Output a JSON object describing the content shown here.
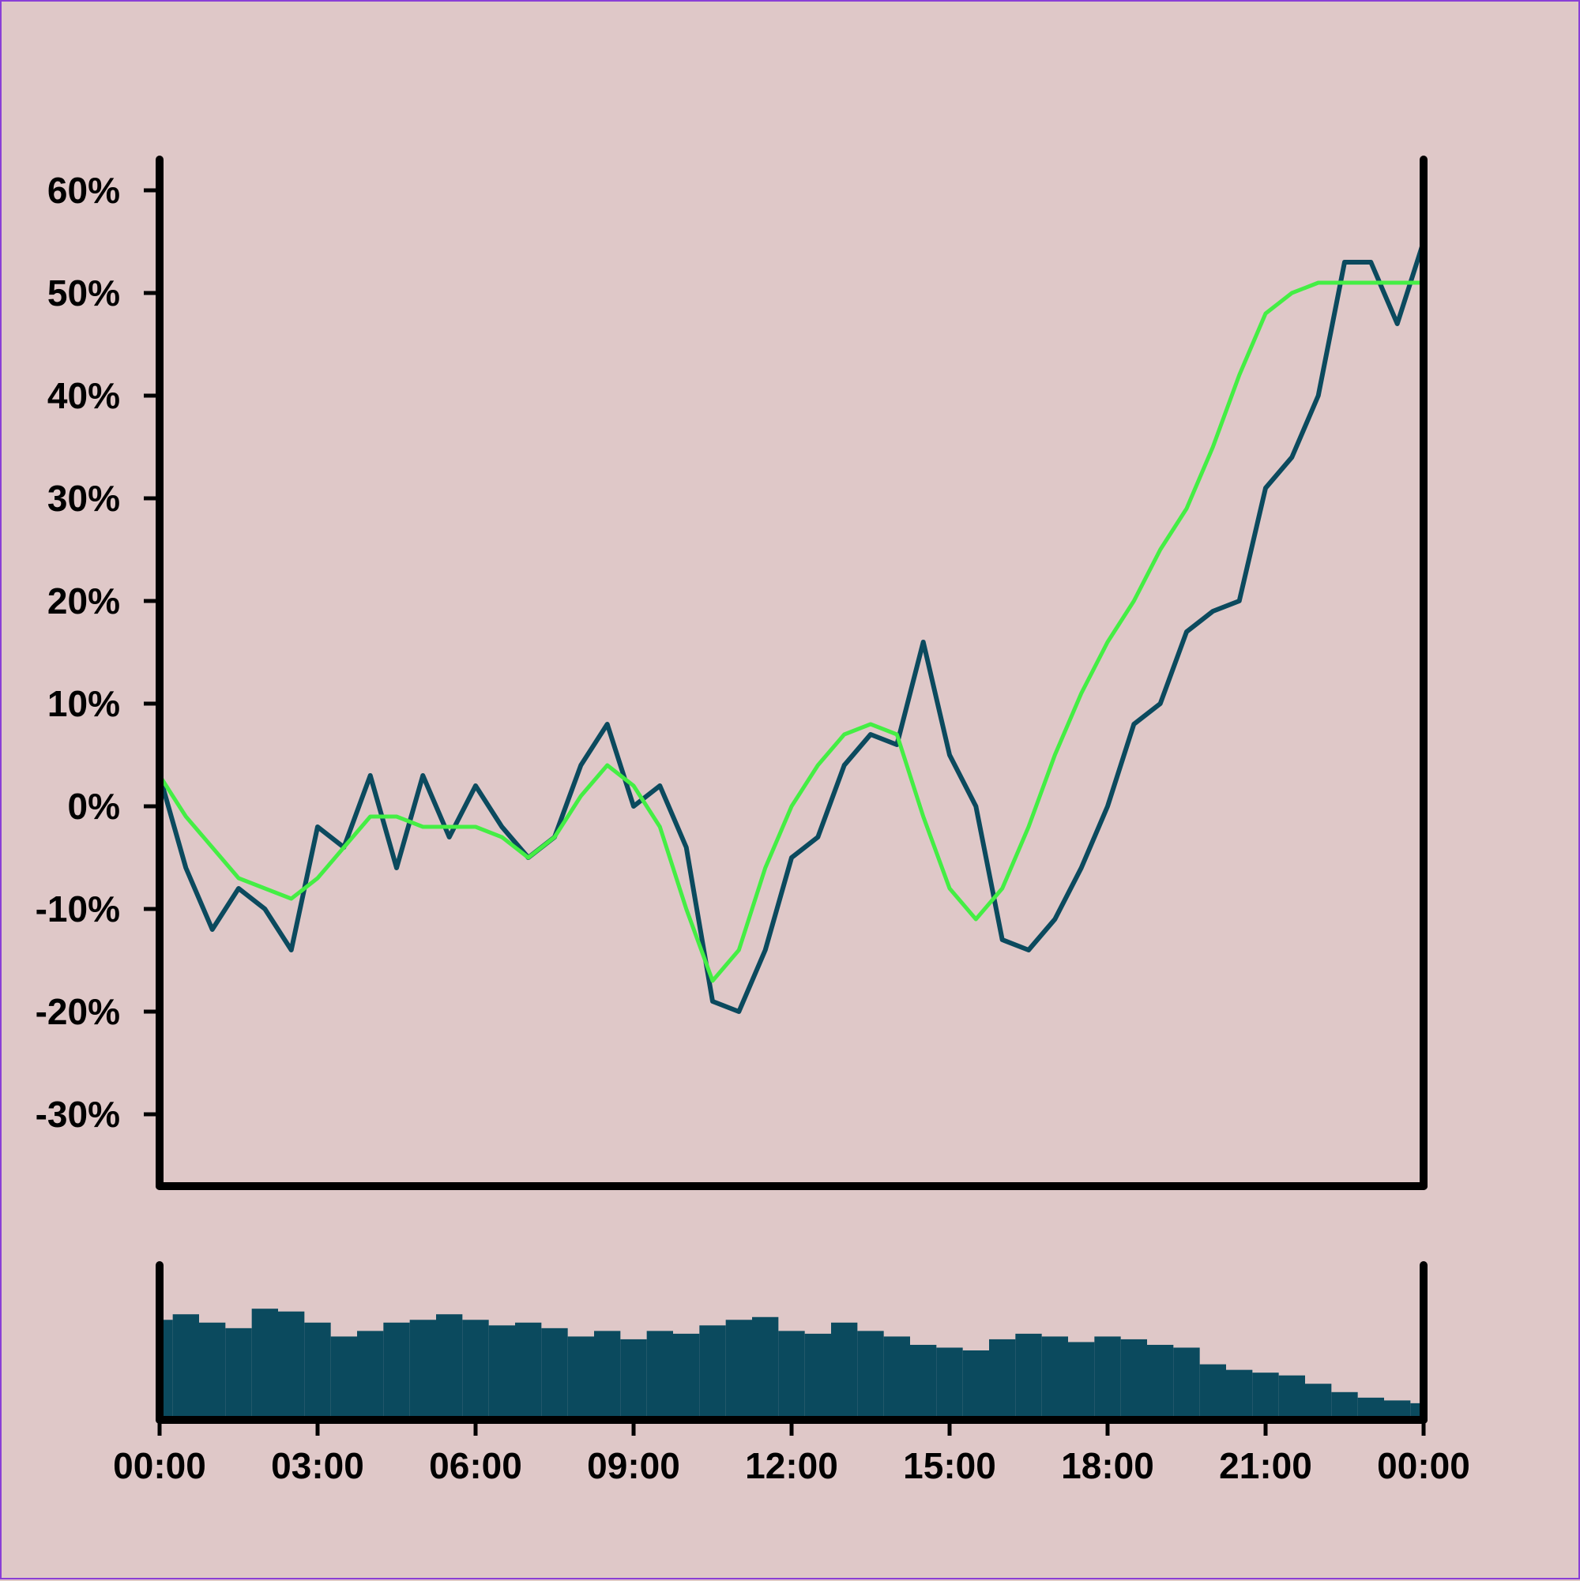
{
  "chart_data": [
    {
      "type": "line",
      "panel": "price",
      "title": "",
      "xlabel": "",
      "ylabel": "",
      "ylim": [
        -37,
        63
      ],
      "y_ticks": [
        60,
        50,
        40,
        30,
        20,
        10,
        0,
        -10,
        -20,
        -30
      ],
      "y_tick_labels": [
        "60%",
        "50%",
        "40%",
        "30%",
        "20%",
        "10%",
        "0%",
        "-10%",
        "-20%",
        "-30%"
      ],
      "xlim": [
        0,
        24
      ],
      "grid": false,
      "legend": "none",
      "series": [
        {
          "color": "#0b4a5e",
          "x": [
            0,
            0.5,
            1,
            1.5,
            2,
            2.5,
            3,
            3.5,
            4,
            4.5,
            5,
            5.5,
            6,
            6.5,
            7,
            7.5,
            8,
            8.5,
            9,
            9.5,
            10,
            10.5,
            11,
            11.5,
            12,
            12.5,
            13,
            13.5,
            14,
            14.5,
            15,
            15.5,
            16,
            16.5,
            17,
            17.5,
            18,
            18.5,
            19,
            19.5,
            20,
            20.5,
            21,
            21.5,
            22,
            22.5,
            23,
            23.5,
            24
          ],
          "y": [
            3,
            -6,
            -12,
            -8,
            -10,
            -14,
            -2,
            -4,
            3,
            -6,
            3,
            -3,
            2,
            -2,
            -5,
            -3,
            4,
            8,
            0,
            2,
            -4,
            -19,
            -20,
            -14,
            -5,
            -3,
            4,
            7,
            6,
            16,
            5,
            0,
            -13,
            -14,
            -11,
            -6,
            0,
            8,
            10,
            17,
            19,
            20,
            31,
            34,
            40,
            53,
            53,
            47,
            55
          ]
        },
        {
          "color": "#44ee44",
          "x": [
            0,
            0.5,
            1,
            1.5,
            2,
            2.5,
            3,
            3.5,
            4,
            4.5,
            5,
            5.5,
            6,
            6.5,
            7,
            7.5,
            8,
            8.5,
            9,
            9.5,
            10,
            10.5,
            11,
            11.5,
            12,
            12.5,
            13,
            13.5,
            14,
            14.5,
            15,
            15.5,
            16,
            16.5,
            17,
            17.5,
            18,
            18.5,
            19,
            19.5,
            20,
            20.5,
            21,
            21.5,
            22,
            22.5,
            23,
            23.5,
            24
          ],
          "y": [
            3,
            -1,
            -4,
            -7,
            -8,
            -9,
            -7,
            -4,
            -1,
            -1,
            -2,
            -2,
            -2,
            -3,
            -5,
            -3,
            1,
            4,
            2,
            -2,
            -10,
            -17,
            -14,
            -6,
            0,
            4,
            7,
            8,
            7,
            -1,
            -8,
            -11,
            -8,
            -2,
            5,
            11,
            16,
            20,
            25,
            29,
            35,
            42,
            48,
            50,
            51,
            51,
            51,
            51,
            51
          ]
        }
      ]
    },
    {
      "type": "bar",
      "panel": "volume",
      "title": "",
      "xlabel": "",
      "ylabel": "",
      "ylim": [
        0,
        1
      ],
      "x_tick_labels": [
        "00:00",
        "03:00",
        "06:00",
        "09:00",
        "12:00",
        "15:00",
        "18:00",
        "21:00",
        "00:00"
      ],
      "grid": false,
      "legend": "none",
      "series": [
        {
          "color": "#0b4a5e",
          "x": [
            0,
            0.5,
            1,
            1.5,
            2,
            2.5,
            3,
            3.5,
            4,
            4.5,
            5,
            5.5,
            6,
            6.5,
            7,
            7.5,
            8,
            8.5,
            9,
            9.5,
            10,
            10.5,
            11,
            11.5,
            12,
            12.5,
            13,
            13.5,
            14,
            14.5,
            15,
            15.5,
            16,
            16.5,
            17,
            17.5,
            18,
            18.5,
            19,
            19.5,
            20,
            20.5,
            21,
            21.5,
            22,
            22.5,
            23,
            23.5,
            24
          ],
          "values": [
            0.72,
            0.76,
            0.7,
            0.66,
            0.8,
            0.78,
            0.7,
            0.6,
            0.64,
            0.7,
            0.72,
            0.76,
            0.72,
            0.68,
            0.7,
            0.66,
            0.6,
            0.64,
            0.58,
            0.64,
            0.62,
            0.68,
            0.72,
            0.74,
            0.64,
            0.62,
            0.7,
            0.64,
            0.6,
            0.54,
            0.52,
            0.5,
            0.58,
            0.62,
            0.6,
            0.56,
            0.6,
            0.58,
            0.54,
            0.52,
            0.4,
            0.36,
            0.34,
            0.32,
            0.26,
            0.2,
            0.16,
            0.14,
            0.12
          ]
        }
      ]
    }
  ]
}
